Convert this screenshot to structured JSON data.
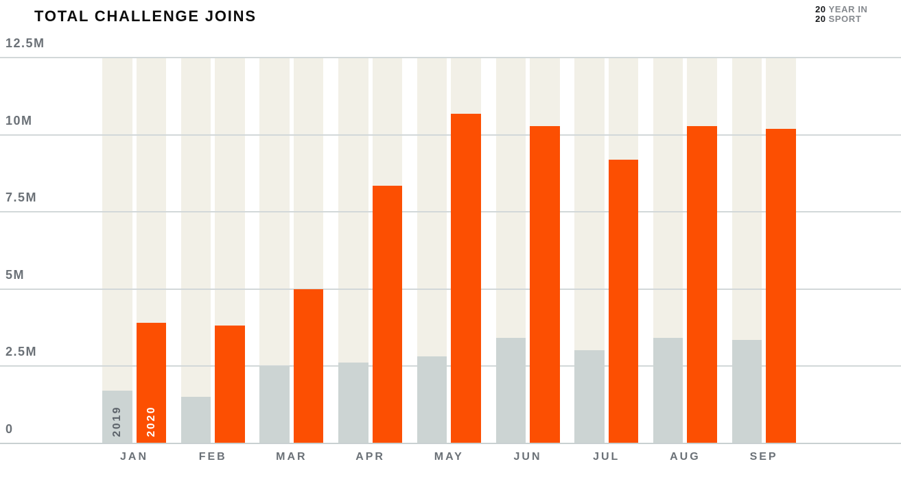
{
  "header": {
    "title": "TOTAL CHALLENGE JOINS",
    "badge": {
      "lines": [
        {
          "num": "20",
          "label": "YEAR IN"
        },
        {
          "num": "20",
          "label": "SPORT"
        }
      ]
    }
  },
  "chart_data": {
    "type": "bar",
    "title": "TOTAL CHALLENGE JOINS",
    "unit": "millions of challenge joins",
    "categories": [
      "JAN",
      "FEB",
      "MAR",
      "APR",
      "MAY",
      "JUN",
      "JUL",
      "AUG",
      "SEP"
    ],
    "series": [
      {
        "name": "2019",
        "color": "#ccd4d3",
        "label_color": "#5d646b",
        "values": [
          1.7,
          1.5,
          2.5,
          2.6,
          2.8,
          3.4,
          3.0,
          3.4,
          3.35
        ]
      },
      {
        "name": "2020",
        "color": "#fc4f02",
        "label_color": "#ffffff",
        "values": [
          3.9,
          3.8,
          5.0,
          8.35,
          10.7,
          10.3,
          9.2,
          10.3,
          10.2
        ]
      }
    ],
    "ylim": [
      0,
      12.5
    ],
    "y_ticks": [
      {
        "label": "12.5M",
        "value": 12.5
      },
      {
        "label": "10M",
        "value": 10
      },
      {
        "label": "7.5M",
        "value": 7.5
      },
      {
        "label": "5M",
        "value": 5
      },
      {
        "label": "2.5M",
        "value": 2.5
      },
      {
        "label": "0",
        "value": 0
      }
    ],
    "grid": "horizontal",
    "legend": "year labels rendered inside first pair of bars",
    "background_column_color": "#f2f0e7",
    "gridline_color": "#d2d8d9",
    "baseline_color": "#c9d0d1",
    "axis_label_color": "#6b7177"
  }
}
